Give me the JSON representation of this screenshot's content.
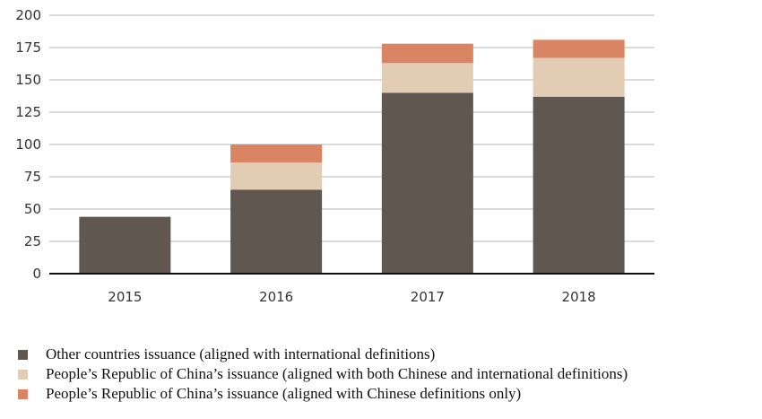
{
  "chart_data": {
    "type": "bar",
    "stacked": true,
    "categories": [
      "2015",
      "2016",
      "2017",
      "2018"
    ],
    "series": [
      {
        "name": "Other countries issuance (aligned with international definitions)",
        "values": [
          44,
          65,
          140,
          137
        ],
        "color": "#5f5750"
      },
      {
        "name": "People’s Republic of China’s issuance (aligned with both Chinese and international definitions)",
        "values": [
          0,
          21,
          23,
          30
        ],
        "color": "#e2ccb3"
      },
      {
        "name": "People’s Republic of China’s issuance (aligned with Chinese definitions only)",
        "values": [
          0,
          14,
          15,
          14
        ],
        "color": "#d98462"
      }
    ],
    "ylim": [
      0,
      200
    ],
    "yticks": [
      "0",
      "25",
      "50",
      "75",
      "100",
      "125",
      "150",
      "175",
      "200"
    ],
    "grid": true,
    "legend_position": "bottom",
    "title": "",
    "xlabel": "",
    "ylabel": ""
  }
}
